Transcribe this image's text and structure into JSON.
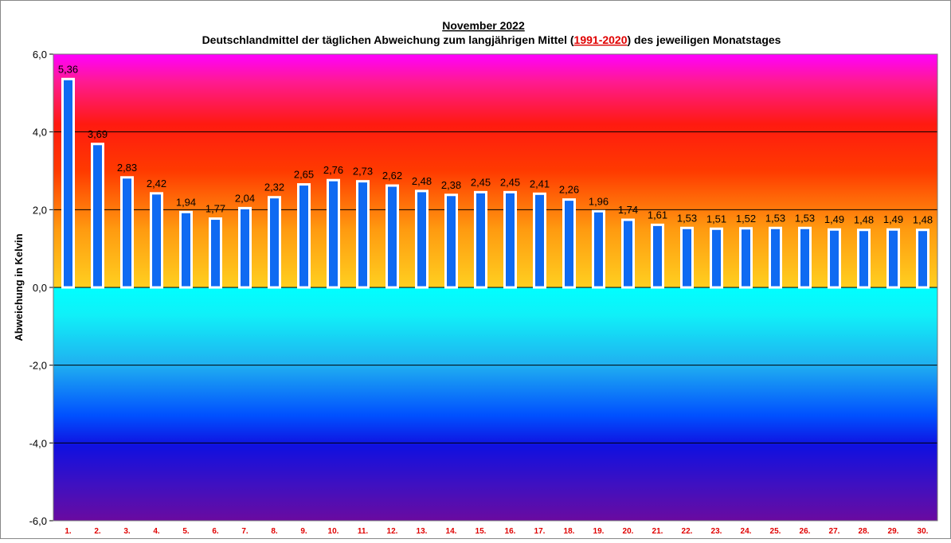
{
  "chart_data": {
    "type": "bar",
    "title": "November 2022",
    "subtitle": [
      "Deutschlandmittel der täglichen Abweichung zum langjährigen Mittel (",
      "1991-2020",
      ") des jeweiligen Monatstages"
    ],
    "y_label": "Abweichung in Kelvin",
    "categories": [
      "1.",
      "2.",
      "3.",
      "4.",
      "5.",
      "6.",
      "7.",
      "8.",
      "9.",
      "10.",
      "11.",
      "12.",
      "13.",
      "14.",
      "15.",
      "16.",
      "17.",
      "18.",
      "19.",
      "20.",
      "21.",
      "22.",
      "23.",
      "24.",
      "25.",
      "26.",
      "27.",
      "28.",
      "29.",
      "30."
    ],
    "values": [
      5.36,
      3.69,
      2.83,
      2.42,
      1.94,
      1.77,
      2.04,
      2.32,
      2.65,
      2.76,
      2.73,
      2.62,
      2.48,
      2.38,
      2.45,
      2.45,
      2.41,
      2.26,
      1.96,
      1.74,
      1.61,
      1.53,
      1.51,
      1.52,
      1.53,
      1.53,
      1.49,
      1.48,
      1.49,
      1.48
    ],
    "value_labels": [
      "5,36",
      "3,69",
      "2,83",
      "2,42",
      "1,94",
      "1,77",
      "2,04",
      "2,32",
      "2,65",
      "2,76",
      "2,73",
      "2,62",
      "2,48",
      "2,38",
      "2,45",
      "2,45",
      "2,41",
      "2,26",
      "1,96",
      "1,74",
      "1,61",
      "1,53",
      "1,51",
      "1,52",
      "1,53",
      "1,53",
      "1,49",
      "1,48",
      "1,49",
      "1,48"
    ],
    "color": "#0f6af2",
    "ylim": [
      -6,
      6
    ],
    "yticks": [
      {
        "value": -6,
        "label": "-6,0"
      },
      {
        "value": -4,
        "label": "-4,0"
      },
      {
        "value": -2,
        "label": "-2,0"
      },
      {
        "value": 0,
        "label": "0,0"
      },
      {
        "value": 2,
        "label": "2,0"
      },
      {
        "value": 4,
        "label": "4,0"
      },
      {
        "value": 6,
        "label": "6,0"
      }
    ],
    "grid": true
  }
}
